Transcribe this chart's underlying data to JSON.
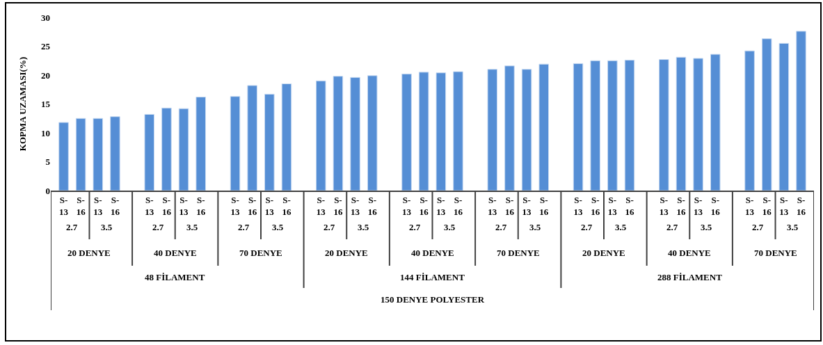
{
  "chart_data": {
    "type": "bar",
    "ylabel": "KOPMA UZAMASI(%)",
    "categories": [
      "S-13",
      "S-16",
      "S-13",
      "S-16",
      null,
      "S-13",
      "S-16",
      "S-13",
      "S-16",
      null,
      "S-13",
      "S-16",
      "S-13",
      "S-16",
      null,
      "S-13",
      "S-16",
      "S-13",
      "S-16",
      null,
      "S-13",
      "S-16",
      "S-13",
      "S-16",
      null,
      "S-13",
      "S-16",
      "S-13",
      "S-16",
      null,
      "S-13",
      "S-16",
      "S-13",
      "S-16",
      null,
      "S-13",
      "S-16",
      "S-13",
      "S-16",
      null,
      "S-13",
      "S-16",
      "S-13",
      "S-16"
    ],
    "values": [
      11.8,
      12.5,
      12.5,
      12.8,
      null,
      13.2,
      14.3,
      14.2,
      16.2,
      null,
      16.3,
      18.2,
      16.7,
      18.5,
      null,
      19.0,
      19.8,
      19.6,
      19.9,
      null,
      20.2,
      20.5,
      20.4,
      20.6,
      null,
      21.0,
      21.6,
      21.0,
      21.9,
      null,
      22.0,
      22.5,
      22.5,
      22.6,
      null,
      22.7,
      23.1,
      22.9,
      23.6,
      null,
      24.2,
      26.3,
      25.5,
      27.6
    ],
    "color": "#558ed5",
    "ylim": [
      0,
      30
    ],
    "yticks": [
      0,
      5,
      10,
      15,
      20,
      25,
      30
    ],
    "grid": false,
    "annotations": [
      "2.7",
      "3.5",
      "2.7",
      "3.5",
      "2.7",
      "3.5",
      "2.7",
      "3.5",
      "2.7",
      "3.5",
      "2.7",
      "3.5",
      "2.7",
      "3.5",
      "2.7",
      "3.5",
      "2.7",
      "3.5",
      "20 DENYE",
      "40 DENYE",
      "70 DENYE",
      "20 DENYE",
      "40 DENYE",
      "70 DENYE",
      "20 DENYE",
      "40 DENYE",
      "70 DENYE",
      "48 FİLAMENT",
      "144 FİLAMENT",
      "288 FİLAMENT",
      "150 DENYE POLYESTER"
    ]
  }
}
